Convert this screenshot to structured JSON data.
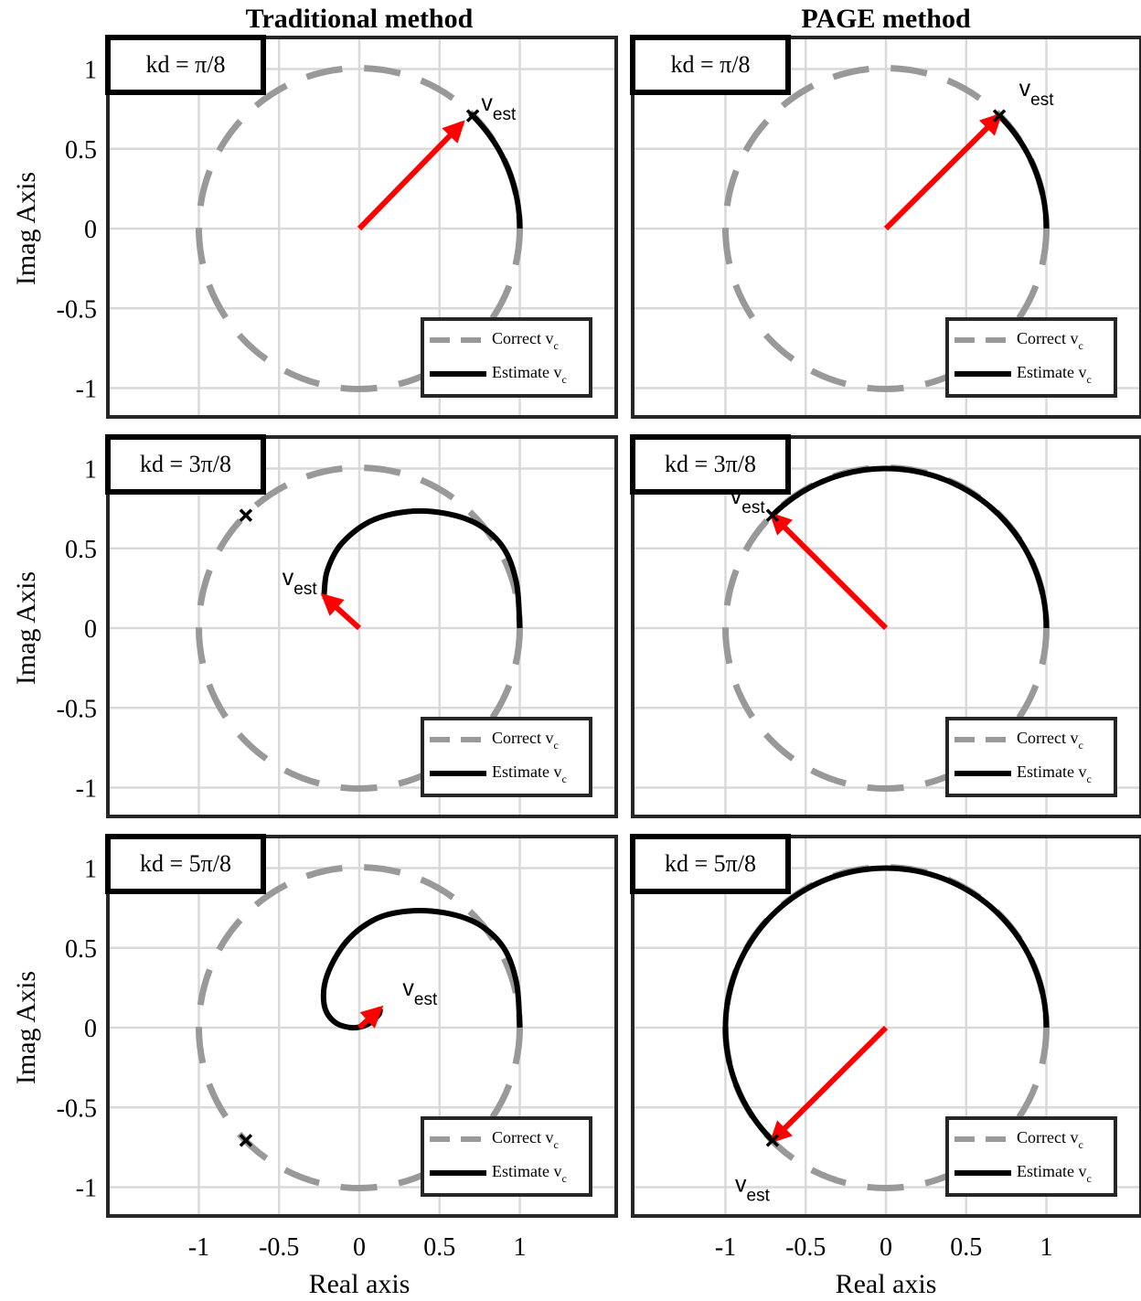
{
  "column_titles": [
    "Traditional method",
    "PAGE method"
  ],
  "xlabel": "Real axis",
  "ylabel": "Imag Axis",
  "x_ticks": [
    -1,
    -0.5,
    0,
    0.5,
    1
  ],
  "y_ticks": [
    1,
    0.5,
    0,
    -0.5,
    -1
  ],
  "legend": {
    "correct": "Correct v",
    "estimate": "Estimate v",
    "subscript": "c"
  },
  "vector_label": {
    "main": "v",
    "sub": "est"
  },
  "colors": {
    "correct": "#999999",
    "estimate": "#000000",
    "arrow": "#ff0000",
    "grid": "#d9d9d9",
    "frame": "#262626"
  },
  "chart_data": [
    {
      "type": "line",
      "row": 0,
      "col": 0,
      "annotation": "kd = π/8",
      "xlim": [
        -1.3,
        1.6
      ],
      "ylim": [
        -1.1,
        1.2
      ],
      "correct_circle_radius": 1,
      "estimate_curve": {
        "kind": "arc",
        "radius": 1,
        "theta_deg": [
          0,
          46
        ]
      },
      "arrow": {
        "from": [
          0,
          0
        ],
        "to": [
          0.64,
          0.66
        ]
      },
      "marker": [
        0.7071,
        0.7071
      ],
      "vest_label_at": [
        0.76,
        0.74
      ]
    },
    {
      "type": "line",
      "row": 0,
      "col": 1,
      "annotation": "kd = π/8",
      "xlim": [
        -1.3,
        1.6
      ],
      "ylim": [
        -1.1,
        1.2
      ],
      "correct_circle_radius": 1,
      "estimate_curve": {
        "kind": "arc",
        "radius": 1,
        "theta_deg": [
          0,
          45
        ]
      },
      "arrow": {
        "from": [
          0,
          0
        ],
        "to": [
          0.7071,
          0.7071
        ]
      },
      "marker": [
        0.7071,
        0.7071
      ],
      "vest_label_at": [
        0.83,
        0.83
      ]
    },
    {
      "type": "line",
      "row": 1,
      "col": 0,
      "annotation": "kd = 3π/8",
      "xlim": [
        -1.3,
        1.6
      ],
      "ylim": [
        -1.1,
        1.2
      ],
      "correct_circle_radius": 1,
      "estimate_curve": {
        "kind": "spiral",
        "points": [
          [
            1,
            0
          ],
          [
            0.98,
            0.28
          ],
          [
            0.9,
            0.5
          ],
          [
            0.74,
            0.65
          ],
          [
            0.53,
            0.72
          ],
          [
            0.3,
            0.73
          ],
          [
            0.07,
            0.67
          ],
          [
            -0.11,
            0.53
          ],
          [
            -0.2,
            0.36
          ],
          [
            -0.22,
            0.2
          ]
        ]
      },
      "arrow": {
        "from": [
          0,
          0
        ],
        "to": [
          -0.22,
          0.2
        ]
      },
      "marker": [
        -0.7071,
        0.7071
      ],
      "vest_label_at": [
        -0.48,
        0.27
      ]
    },
    {
      "type": "line",
      "row": 1,
      "col": 1,
      "annotation": "kd = 3π/8",
      "xlim": [
        -1.3,
        1.6
      ],
      "ylim": [
        -1.1,
        1.2
      ],
      "correct_circle_radius": 1,
      "estimate_curve": {
        "kind": "arc",
        "radius": 1,
        "theta_deg": [
          0,
          135
        ]
      },
      "arrow": {
        "from": [
          0,
          0
        ],
        "to": [
          -0.7071,
          0.7071
        ]
      },
      "marker": [
        -0.7071,
        0.7071
      ],
      "vest_label_at": [
        -0.97,
        0.78
      ]
    },
    {
      "type": "line",
      "row": 2,
      "col": 0,
      "annotation": "kd = 5π/8",
      "xlim": [
        -1.3,
        1.6
      ],
      "ylim": [
        -1.1,
        1.2
      ],
      "correct_circle_radius": 1,
      "estimate_curve": {
        "kind": "spiral",
        "points": [
          [
            1,
            0
          ],
          [
            0.98,
            0.28
          ],
          [
            0.9,
            0.5
          ],
          [
            0.74,
            0.65
          ],
          [
            0.53,
            0.72
          ],
          [
            0.3,
            0.73
          ],
          [
            0.1,
            0.68
          ],
          [
            -0.08,
            0.54
          ],
          [
            -0.2,
            0.33
          ],
          [
            -0.22,
            0.15
          ],
          [
            -0.16,
            0.04
          ],
          [
            -0.05,
            0
          ],
          [
            0.05,
            0.02
          ],
          [
            0.12,
            0.08
          ],
          [
            0.13,
            0.12
          ]
        ]
      },
      "arrow": {
        "from": [
          0,
          0
        ],
        "to": [
          0.13,
          0.12
        ]
      },
      "marker": [
        -0.7071,
        -0.7071
      ],
      "vest_label_at": [
        0.27,
        0.2
      ]
    },
    {
      "type": "line",
      "row": 2,
      "col": 1,
      "annotation": "kd = 5π/8",
      "xlim": [
        -1.3,
        1.6
      ],
      "ylim": [
        -1.1,
        1.2
      ],
      "correct_circle_radius": 1,
      "estimate_curve": {
        "kind": "arc",
        "radius": 1,
        "theta_deg": [
          0,
          225
        ]
      },
      "arrow": {
        "from": [
          0,
          0
        ],
        "to": [
          -0.7071,
          -0.7071
        ]
      },
      "marker": [
        -0.7071,
        -0.7071
      ],
      "vest_label_at": [
        -0.94,
        -1.03
      ]
    }
  ]
}
